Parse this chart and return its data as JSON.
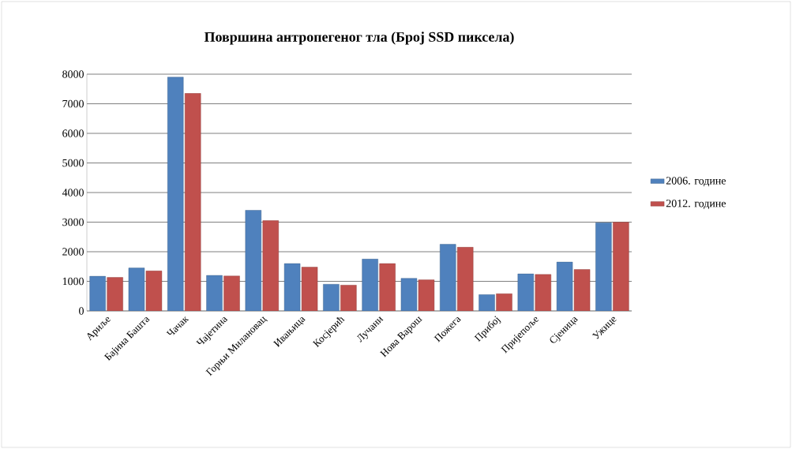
{
  "chart_data": {
    "type": "bar",
    "title": "Површина антропегеног тла (Број SSD пиксела)",
    "categories": [
      "Ариље",
      "Бајина Башта",
      "Чачак",
      "Чајетина",
      "Горњи Милановац",
      "Ивањица",
      "Косјерић",
      "Лучани",
      "Нова Варош",
      "Пожега",
      "Прибој",
      "Пријепоље",
      "Сјеница",
      "Ужице"
    ],
    "series": [
      {
        "name": "2006. године",
        "color": "#4f81bd",
        "values": [
          1170,
          1450,
          7900,
          1200,
          3400,
          1600,
          900,
          1750,
          1100,
          2250,
          550,
          1250,
          1650,
          2980
        ]
      },
      {
        "name": "2012. године",
        "color": "#c0504d",
        "values": [
          1130,
          1350,
          7350,
          1180,
          3050,
          1480,
          870,
          1600,
          1050,
          2150,
          580,
          1230,
          1400,
          3000
        ]
      }
    ],
    "ylim": [
      0,
      8000
    ],
    "yticks": [
      0,
      1000,
      2000,
      3000,
      4000,
      5000,
      6000,
      7000,
      8000
    ],
    "grid": "y",
    "legend": "right"
  }
}
